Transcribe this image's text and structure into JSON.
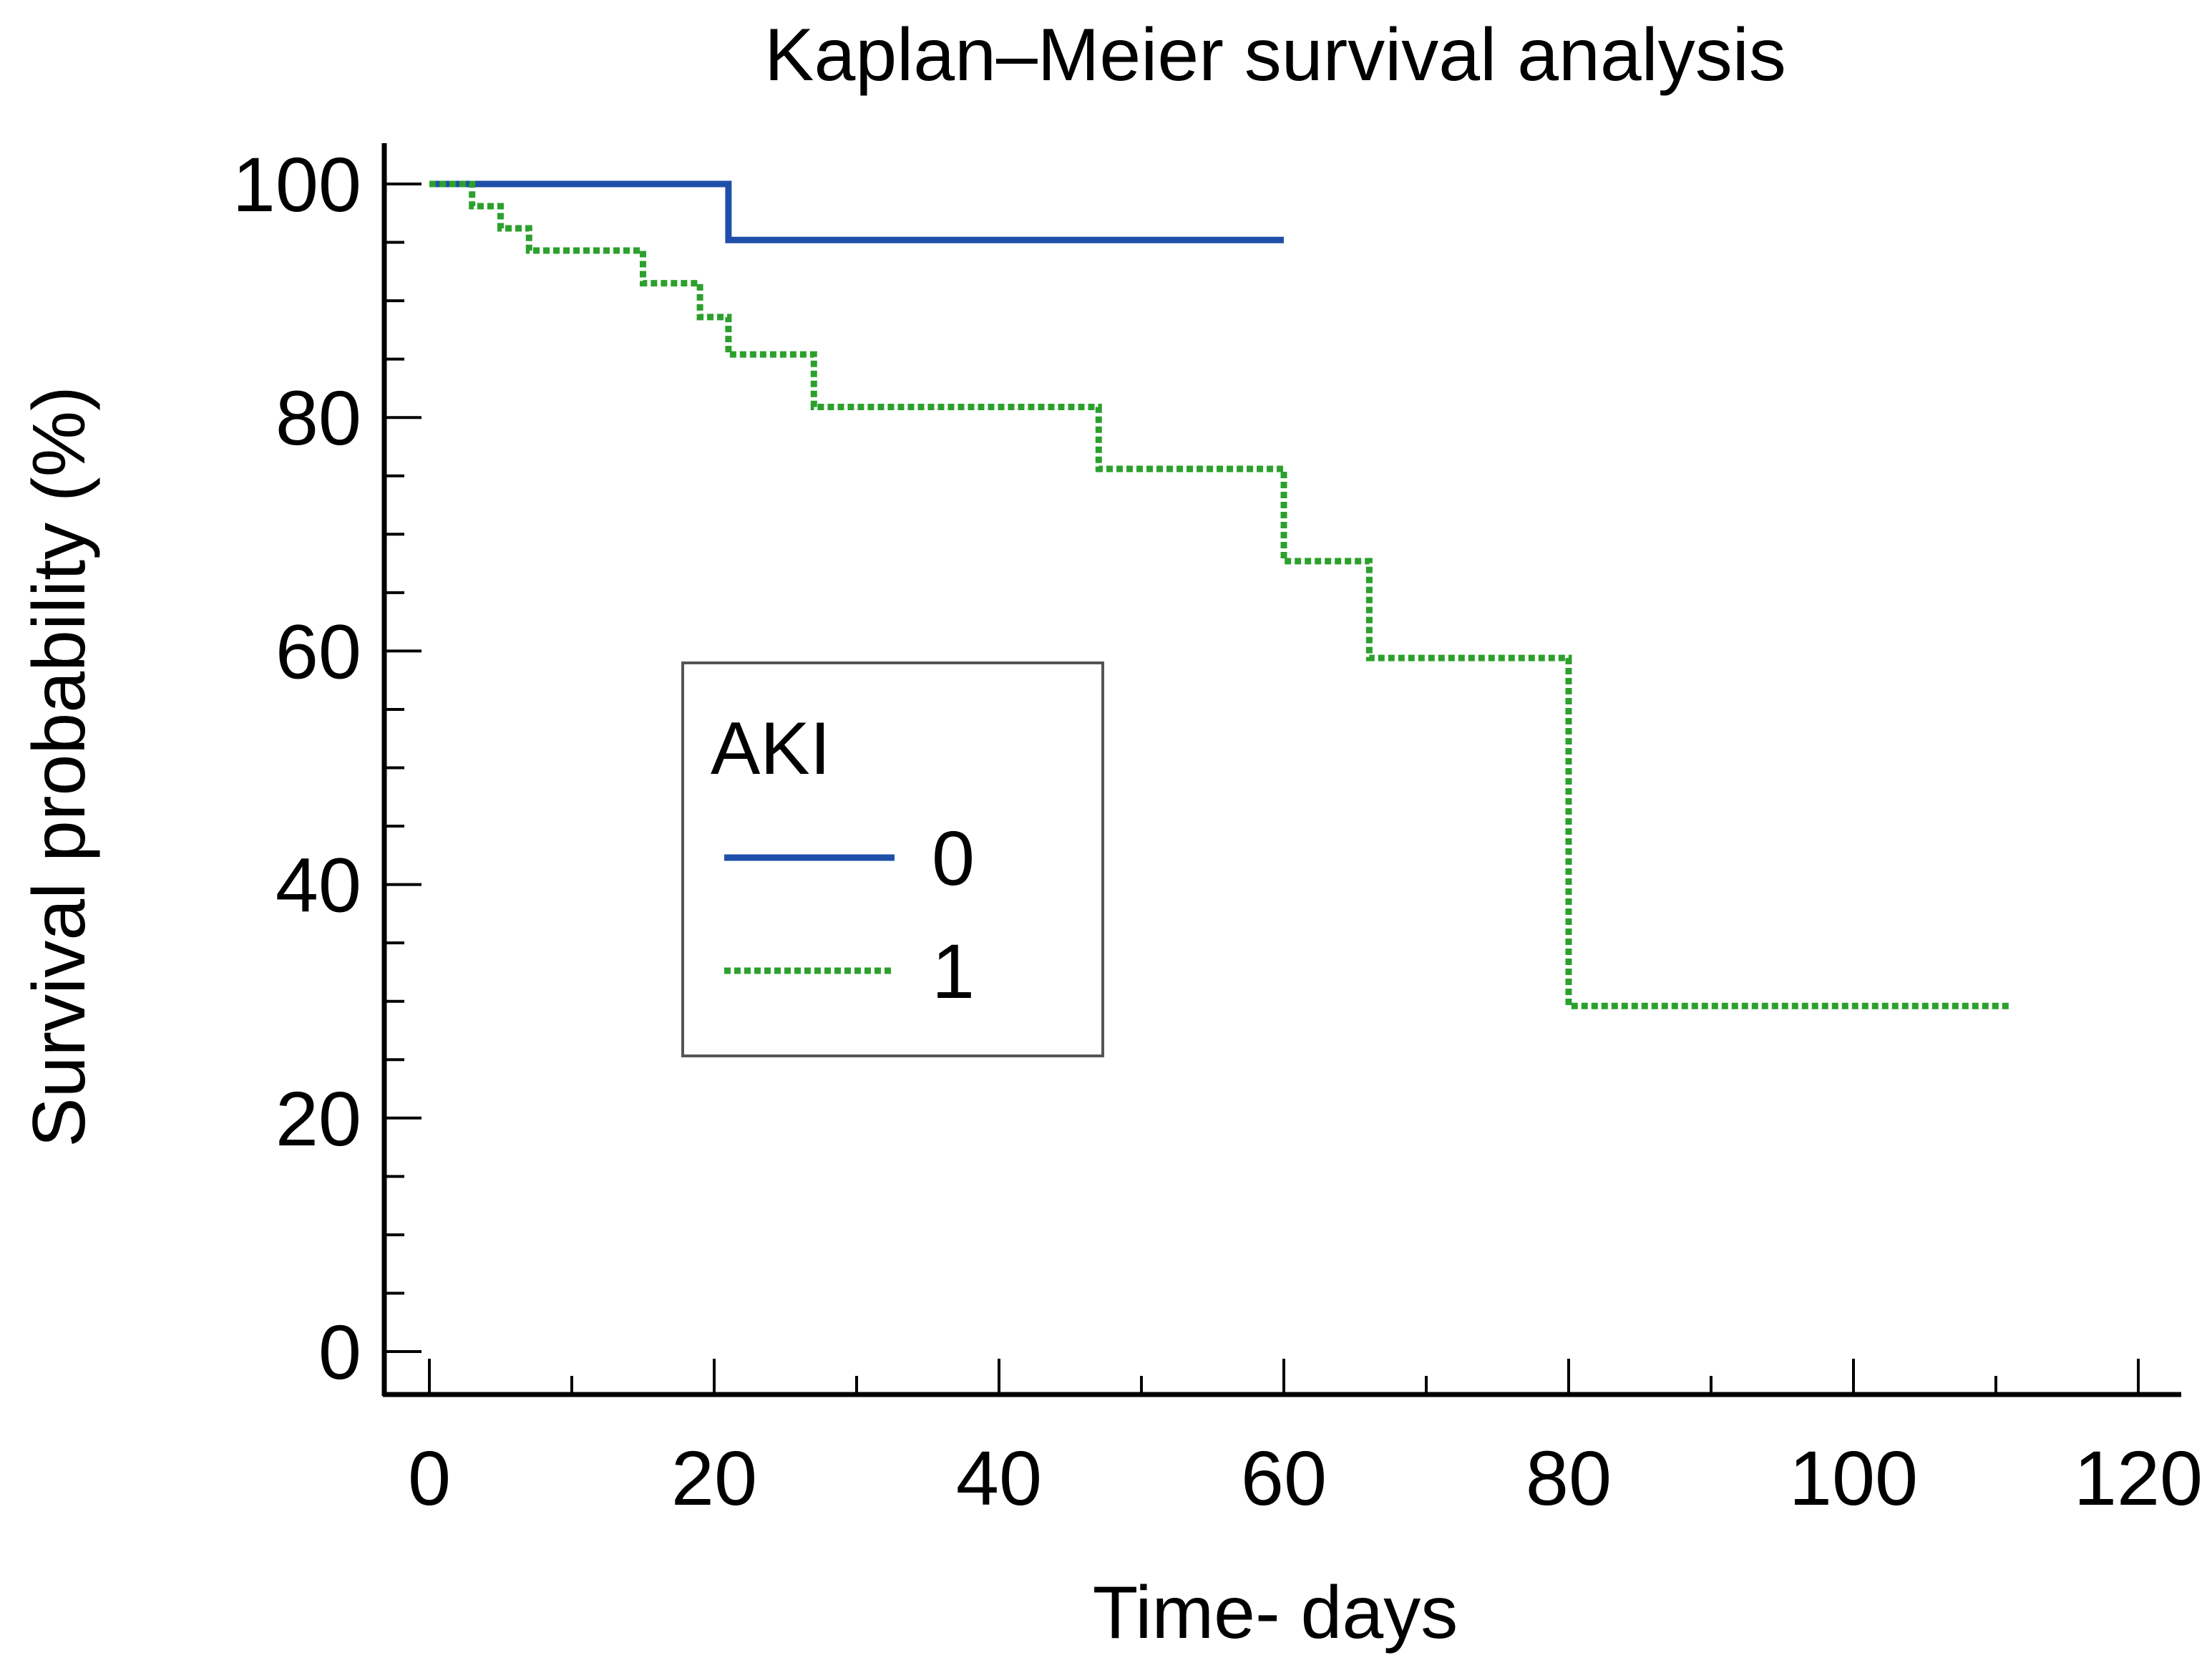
{
  "chart_data": {
    "type": "line",
    "title": "Kaplan–Meier survival analysis",
    "xlabel": "Time- days",
    "ylabel": "Survival probability (%)",
    "xlim": [
      0,
      120
    ],
    "ylim": [
      0,
      100
    ],
    "xticks": [
      0,
      20,
      40,
      60,
      80,
      100,
      120
    ],
    "yticks": [
      0,
      20,
      40,
      60,
      80,
      100
    ],
    "xminor_step": 10,
    "yminor_step": 5,
    "grid": false,
    "step": true,
    "legend": {
      "title": "AKI",
      "placement": "center-left"
    },
    "series": [
      {
        "name": "0",
        "color": "#1f4fa8",
        "style": "solid",
        "x": [
          0,
          21,
          60
        ],
        "y": [
          100,
          95.2,
          95.2
        ]
      },
      {
        "name": "1",
        "color": "#2ca02c",
        "style": "dotted",
        "x": [
          0,
          3,
          5,
          7,
          15,
          19,
          21,
          27,
          47,
          60,
          66,
          80,
          111
        ],
        "y": [
          100,
          98.1,
          96.2,
          94.3,
          91.5,
          88.6,
          85.4,
          80.9,
          75.6,
          67.7,
          59.4,
          29.6,
          29.6
        ]
      }
    ]
  }
}
